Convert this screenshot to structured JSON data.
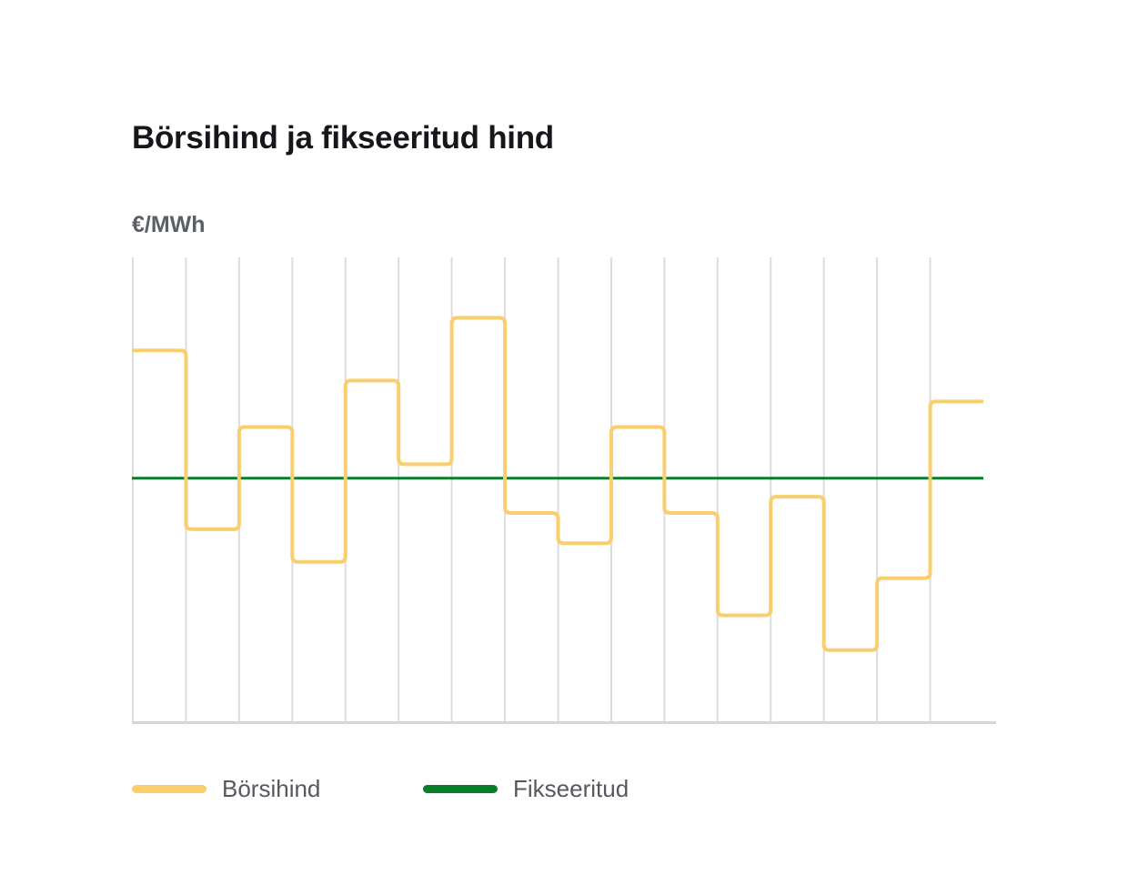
{
  "chart_data": {
    "type": "line",
    "title": "Börsihind ja fikseeritud hind",
    "ylabel": "€/MWh",
    "xlabel": "",
    "step": true,
    "grid": {
      "vertical": true,
      "horizontal": false
    },
    "ylim": [
      0,
      100
    ],
    "x_periods": 16,
    "series": [
      {
        "name": "Börsihind",
        "color": "#f9cf6e",
        "values": [
          80,
          41.5,
          63.5,
          34.5,
          73.5,
          55.5,
          87,
          45,
          38.5,
          63.5,
          45,
          23,
          48.5,
          15.5,
          31,
          69
        ]
      },
      {
        "name": "Fikseeritud",
        "color": "#0a7d2c",
        "values": [
          52.5,
          52.5,
          52.5,
          52.5,
          52.5,
          52.5,
          52.5,
          52.5,
          52.5,
          52.5,
          52.5,
          52.5,
          52.5,
          52.5,
          52.5,
          52.5
        ]
      }
    ],
    "legend": {
      "position": "bottom-left",
      "items": [
        {
          "label": "Börsihind",
          "color": "#f9cf6e"
        },
        {
          "label": "Fikseeritud",
          "color": "#0a7d2c"
        }
      ]
    }
  }
}
